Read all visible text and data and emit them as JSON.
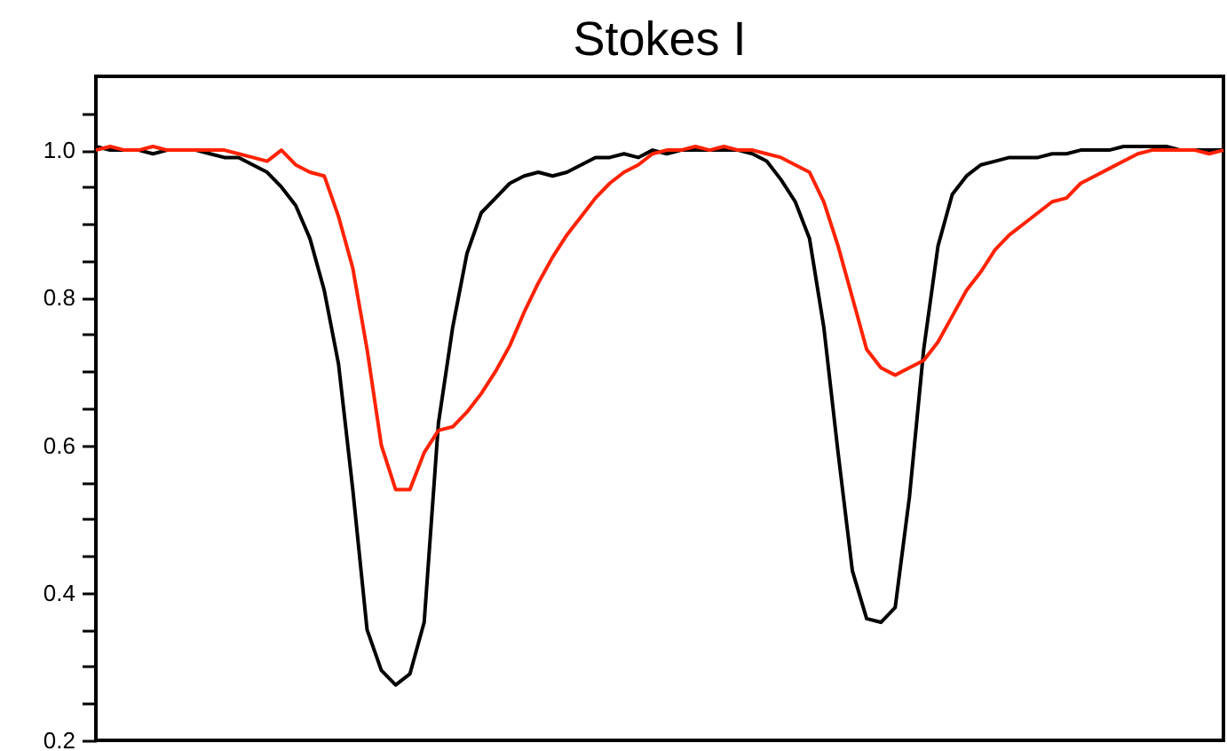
{
  "chart_data": {
    "type": "line",
    "title": "Stokes I",
    "categories": [
      null,
      null,
      null,
      null,
      null,
      null,
      null,
      null,
      null,
      null,
      null,
      null,
      null,
      null,
      null,
      null,
      null,
      null,
      null,
      null,
      null,
      null,
      null,
      null,
      null,
      null,
      null,
      null,
      null,
      null,
      null,
      null,
      null,
      null,
      null,
      null,
      null,
      null,
      null,
      null,
      null,
      null,
      null,
      null,
      null,
      null,
      null,
      null,
      null,
      null,
      null,
      null,
      null,
      null,
      null,
      null,
      null,
      null,
      null,
      null,
      null,
      null,
      null,
      null,
      null,
      null,
      null,
      null,
      null,
      null,
      null,
      null,
      null,
      null,
      null,
      null,
      null,
      null,
      null,
      null
    ],
    "series": [
      {
        "color": "#000000",
        "values": [
          1.005,
          1.0,
          1.0,
          1.0,
          0.995,
          1.0,
          1.0,
          1.0,
          0.995,
          0.99,
          0.99,
          0.98,
          0.97,
          0.95,
          0.925,
          0.88,
          0.81,
          0.71,
          0.54,
          0.35,
          0.295,
          0.275,
          0.29,
          0.36,
          0.63,
          0.76,
          0.86,
          0.915,
          0.935,
          0.955,
          0.965,
          0.97,
          0.965,
          0.97,
          0.98,
          0.99,
          0.99,
          0.995,
          0.99,
          1.0,
          0.995,
          1.0,
          1.0,
          1.0,
          1.0,
          1.0,
          0.995,
          0.985,
          0.96,
          0.93,
          0.88,
          0.76,
          0.59,
          0.43,
          0.365,
          0.36,
          0.38,
          0.53,
          0.73,
          0.87,
          0.94,
          0.965,
          0.98,
          0.985,
          0.99,
          0.99,
          0.99,
          0.995,
          0.995,
          1.0,
          1.0,
          1.0,
          1.005,
          1.005,
          1.005,
          1.005,
          1.0,
          1.0,
          1.0,
          1.0
        ]
      },
      {
        "color": "#ff2200",
        "values": [
          1.0,
          1.005,
          1.0,
          1.0,
          1.005,
          1.0,
          1.0,
          1.0,
          1.0,
          1.0,
          0.995,
          0.99,
          0.985,
          1.0,
          0.98,
          0.97,
          0.965,
          0.91,
          0.84,
          0.73,
          0.6,
          0.54,
          0.54,
          0.59,
          0.62,
          0.625,
          0.645,
          0.67,
          0.7,
          0.735,
          0.78,
          0.82,
          0.855,
          0.885,
          0.91,
          0.935,
          0.955,
          0.97,
          0.98,
          0.995,
          1.0,
          1.0,
          1.005,
          1.0,
          1.005,
          1.0,
          1.0,
          0.995,
          0.99,
          0.98,
          0.97,
          0.93,
          0.87,
          0.8,
          0.73,
          0.705,
          0.695,
          0.705,
          0.715,
          0.74,
          0.775,
          0.81,
          0.835,
          0.865,
          0.885,
          0.9,
          0.915,
          0.93,
          0.935,
          0.955,
          0.965,
          0.975,
          0.985,
          0.995,
          1.0,
          1.0,
          1.0,
          1.0,
          0.995,
          1.0
        ]
      }
    ],
    "ylim": [
      0.2,
      1.1
    ],
    "yticks": [
      0.2,
      {
        "value": 0.25,
        "label": null
      },
      {
        "value": 0.3,
        "label": null
      },
      {
        "value": 0.35,
        "label": null
      },
      0.4,
      {
        "value": 0.45,
        "label": null
      },
      {
        "value": 0.5,
        "label": null
      },
      {
        "value": 0.55,
        "label": null
      },
      0.6,
      {
        "value": 0.65,
        "label": null
      },
      {
        "value": 0.7,
        "label": null
      },
      {
        "value": 0.75,
        "label": null
      },
      0.8,
      {
        "value": 0.85,
        "label": null
      },
      {
        "value": 0.9,
        "label": null
      },
      {
        "value": 0.95,
        "label": null
      },
      {
        "value": 1,
        "label": "1.0"
      },
      {
        "value": 1.05,
        "label": null
      }
    ],
    "tick_labels": "y",
    "grid": false,
    "legend": false,
    "line_style": "solid"
  }
}
